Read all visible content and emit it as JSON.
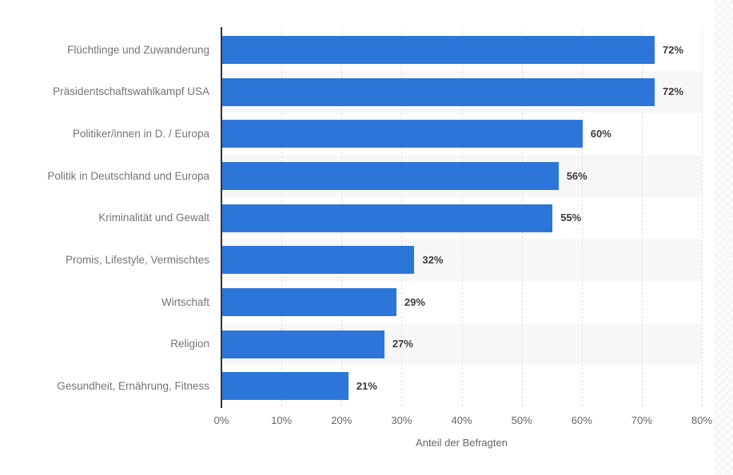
{
  "chart_data": {
    "type": "bar",
    "orientation": "horizontal",
    "categories": [
      "Flüchtlinge und Zuwanderung",
      "Präsidentschaftswahlkampf USA",
      "Politiker/innen in D. / Europa",
      "Politik in Deutschland und Europa",
      "Kriminalität und Gewalt",
      "Promis, Lifestyle, Vermischtes",
      "Wirtschaft",
      "Religion",
      "Gesundheit, Ernährung, Fitness"
    ],
    "values": [
      72,
      72,
      60,
      56,
      55,
      32,
      29,
      27,
      21
    ],
    "value_labels": [
      "72%",
      "72%",
      "60%",
      "56%",
      "55%",
      "32%",
      "29%",
      "27%",
      "21%"
    ],
    "xlabel": "Anteil der Befragten",
    "xlim": [
      0,
      80
    ],
    "x_tick_labels": [
      "0%",
      "10%",
      "20%",
      "30%",
      "40%",
      "50%",
      "60%",
      "70%",
      "80%"
    ],
    "grid": "vertical-dotted",
    "legend": "none",
    "alternating_row_band_indices": [
      1,
      3,
      5,
      7
    ],
    "colors": {
      "bar": "#2d76d9",
      "row_band": "#f7f7f7",
      "gridline": "#d6d6d6",
      "axis_line": "#333333",
      "category_label": "#757575",
      "value_label": "#3c3c3c",
      "tick_label": "#666666",
      "axis_title": "#666666"
    }
  }
}
